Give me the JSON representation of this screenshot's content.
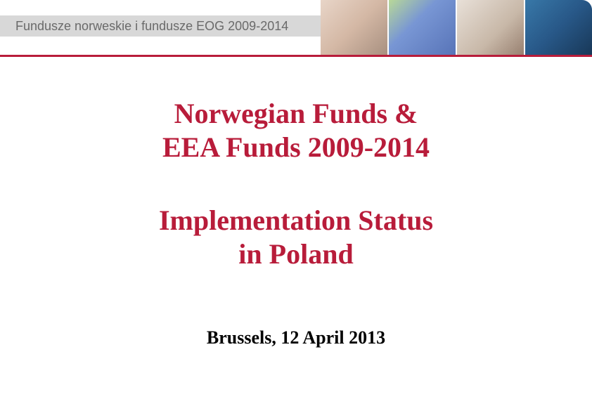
{
  "header": {
    "label": "Fundusze norweskie i fundusze EOG 2009-2014",
    "underline_color": "#b81c3a",
    "bar_color": "#d8d8d8",
    "text_color": "#6a6a6a"
  },
  "title": {
    "line1": "Norwegian Funds &",
    "line2": "EEA Funds 2009-2014",
    "color": "#b81c3a",
    "fontsize": 40
  },
  "subtitle": {
    "line1": "Implementation Status",
    "line2": "in Poland",
    "color": "#b81c3a",
    "fontsize": 40
  },
  "footer": {
    "text": "Brussels, 12 April 2013",
    "color": "#000000",
    "fontsize": 26
  },
  "background_color": "#ffffff"
}
